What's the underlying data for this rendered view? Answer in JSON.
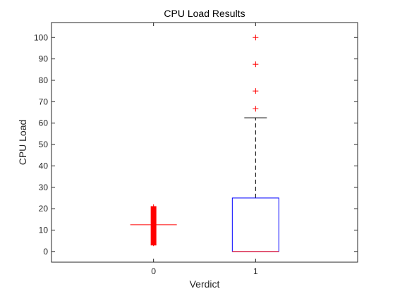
{
  "chart_data": {
    "type": "box",
    "title": "CPU Load Results",
    "xlabel": "Verdict",
    "ylabel": "CPU Load",
    "ylim": [
      -5,
      107
    ],
    "yticks": [
      0,
      10,
      20,
      30,
      40,
      50,
      60,
      70,
      80,
      90,
      100
    ],
    "categories": [
      "0",
      "1"
    ],
    "grid": false,
    "boxes": [
      {
        "category": "0",
        "q1": 3,
        "median": 12.5,
        "q3": 21,
        "whisker_low": 2.5,
        "whisker_high": 22,
        "outliers": []
      },
      {
        "category": "1",
        "q1": 0,
        "median": 0,
        "q3": 25,
        "whisker_low": 0,
        "whisker_high": 62.5,
        "outliers": [
          66.7,
          75,
          87.5,
          100
        ]
      }
    ],
    "colors": {
      "box_edge": "#0000ff",
      "median": "#ff0000",
      "whisker": "#000000",
      "outlier": "#ff0000",
      "compact_box": "#ff0000",
      "axis": "#262626"
    }
  }
}
